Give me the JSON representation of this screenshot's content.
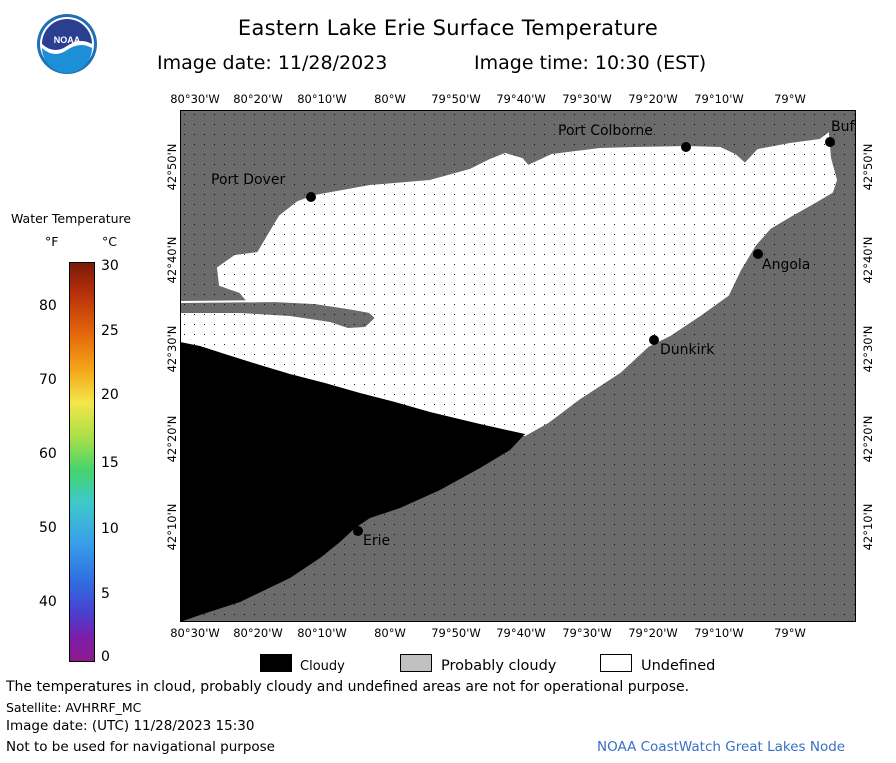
{
  "header": {
    "title": "Eastern Lake Erie Surface Temperature",
    "image_date_label": "Image date: 11/28/2023",
    "image_time_label": "Image time: 10:30 (EST)",
    "logo_text": "NOAA"
  },
  "map": {
    "lon_labels": [
      "80°30'W",
      "80°20'W",
      "80°10'W",
      "80°W",
      "79°50'W",
      "79°40'W",
      "79°30'W",
      "79°20'W",
      "79°10'W",
      "79°W"
    ],
    "lat_labels": [
      "42°50'N",
      "42°40'N",
      "42°30'N",
      "42°20'N",
      "42°10'N"
    ],
    "cities": [
      {
        "name": "Port Dover"
      },
      {
        "name": "Port Colborne"
      },
      {
        "name": "Buf"
      },
      {
        "name": "Angola"
      },
      {
        "name": "Dunkirk"
      },
      {
        "name": "Erie"
      }
    ],
    "colors": {
      "land": "#6b6b6b",
      "cloud": "#000000",
      "undefined": "#ffffff",
      "probably_cloudy": "#c0c0c0"
    }
  },
  "colorbar": {
    "title": "Water Temperature",
    "unit_f": "°F",
    "unit_c": "°C",
    "f_ticks": [
      "80",
      "70",
      "60",
      "50",
      "40"
    ],
    "c_ticks": [
      "30",
      "25",
      "20",
      "15",
      "10",
      "5",
      "0"
    ],
    "range_c": [
      0,
      30
    ]
  },
  "legend": {
    "cloudy": "Cloudy",
    "probably_cloudy": "Probably cloudy",
    "undefined": "Undefined"
  },
  "footer": {
    "disclaimer": "The temperatures in cloud, probably cloudy and undefined areas are not for operational purpose.",
    "satellite": "Satellite: AVHRRF_MC",
    "image_date_utc": "Image date: (UTC) 11/28/2023  15:30",
    "navigation": "Not to be used for navigational purpose",
    "credit": "NOAA CoastWatch Great Lakes Node"
  }
}
